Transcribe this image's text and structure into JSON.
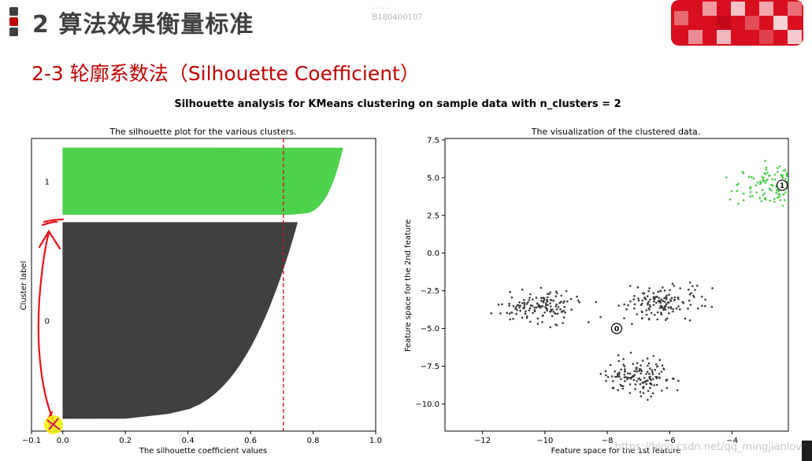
{
  "slide": {
    "title": "2 算法效果衡量标准",
    "section": "2-3 轮廓系数法（Silhouette Coefficient）",
    "watermark_lines": [
      "· · · ·",
      "B180400107"
    ],
    "bullet_colors": [
      "#404040",
      "#c00000",
      "#404040"
    ]
  },
  "chart_data": [
    {
      "type": "silhouette",
      "suptitle": "Silhouette analysis for KMeans clustering on sample data with n_clusters = 2",
      "title": "The silhouette plot for the various clusters.",
      "xlabel": "The silhouette coefficient values",
      "ylabel": "Cluster label",
      "xlim": [
        -0.1,
        1.0
      ],
      "xticks": [
        "−0.1",
        "0.0",
        "0.2",
        "0.4",
        "0.6",
        "0.8",
        "1.0"
      ],
      "average_silhouette": 0.705,
      "cluster_labels": [
        "0",
        "1"
      ],
      "series": [
        {
          "cluster": "0",
          "color": "#404040",
          "count": 250,
          "max": 0.75,
          "min": 0.2
        },
        {
          "cluster": "1",
          "color": "#4dd24d",
          "count": 85,
          "max": 0.895,
          "min": 0.73
        }
      ]
    },
    {
      "type": "scatter",
      "title": "The visualization of the clustered data.",
      "xlabel": "Feature space for the 1st feature",
      "ylabel": "Feature space for the 2nd feature",
      "xlim": [
        -13.2,
        -2.2
      ],
      "ylim": [
        -11.8,
        7.6
      ],
      "xticks": [
        "−12",
        "−10",
        "−8",
        "−6",
        "−4"
      ],
      "yticks": [
        "7.5",
        "5.0",
        "2.5",
        "0.0",
        "−2.5",
        "−5.0",
        "−7.5",
        "−10.0"
      ],
      "series": [
        {
          "name": "0",
          "color": "#3a3a3a",
          "center": [
            -7.7,
            -5.0
          ],
          "count": 420
        },
        {
          "name": "1",
          "color": "#44cc44",
          "center": [
            -2.4,
            4.5
          ],
          "count": 160
        }
      ],
      "centers": [
        {
          "label": "0",
          "x": -7.7,
          "y": -5.0
        },
        {
          "label": "1",
          "x": -2.4,
          "y": 4.5
        }
      ]
    }
  ],
  "footer_watermark": "https://blog.csdn.net/qq_mingjianlove"
}
